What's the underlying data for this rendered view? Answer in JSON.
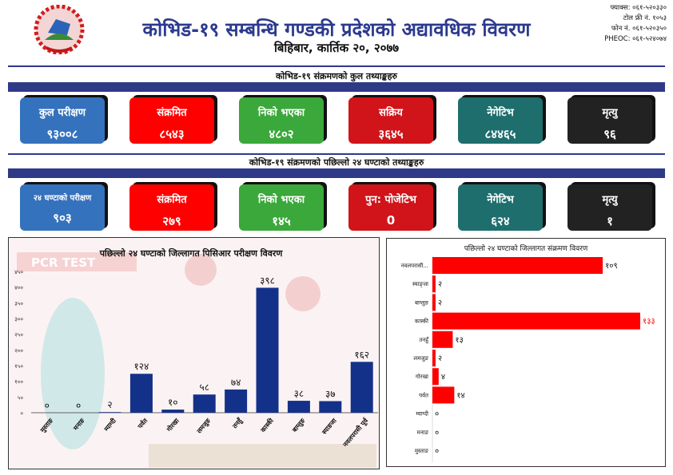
{
  "header": {
    "title": "कोभिड-१९ सम्बन्धि गण्डकी प्रदेशको अद्यावधिक विवरण",
    "date": "बिहिबार, कार्तिक २०, २०७७",
    "contact": [
      "फ्याक्स: ०६१-५२०३३०",
      "टोल फ्री नं. १०५३",
      "फोन नं. ०६१-५२०३५०",
      "PHEOC: ०६१-५२४०७४"
    ]
  },
  "total": {
    "title": "कोभिड-१९ संक्रमणको कुल तथ्याङ्कहरु",
    "cards": [
      {
        "label": "कुल परीक्षण",
        "value": "९३००८",
        "color": "#3572bd"
      },
      {
        "label": "संक्रमित",
        "value": "८५४३",
        "color": "#ff0000"
      },
      {
        "label": "निको भएका",
        "value": "४८०२",
        "color": "#3aa83a"
      },
      {
        "label": "सक्रिय",
        "value": "३६४५",
        "color": "#d0141a"
      },
      {
        "label": "नेगेटिभ",
        "value": "८४४६५",
        "color": "#1e6e6e"
      },
      {
        "label": "मृत्यु",
        "value": "९६",
        "color": "#222222"
      }
    ]
  },
  "last24": {
    "title": "कोभिड-१९ संक्रमणको पछिल्लो २४ घण्टाको तथ्याङ्कहरु",
    "cards": [
      {
        "label": "२४ घण्टाको परीक्षण",
        "value": "९०३",
        "color": "#3572bd"
      },
      {
        "label": "संक्रमित",
        "value": "२७९",
        "color": "#ff0000"
      },
      {
        "label": "निको भएका",
        "value": "१४५",
        "color": "#3aa83a"
      },
      {
        "label": "पुन: पोजेटिभ",
        "value": "0",
        "color": "#d0141a"
      },
      {
        "label": "नेगेटिभ",
        "value": "६२४",
        "color": "#1e6e6e"
      },
      {
        "label": "मृत्यु",
        "value": "१",
        "color": "#222222"
      }
    ]
  },
  "chart_data": [
    {
      "type": "bar",
      "title": "पछिल्लो २४ घण्टाको जिल्लागत पिसिआर परीक्षण विवरण",
      "watermark": "PCR TEST",
      "categories": [
        "मुस्ताङ",
        "मनाङ",
        "म्याग्दी",
        "पर्वत",
        "गोरखा",
        "लमजुङ",
        "तनहुँ",
        "कास्की",
        "बाग्लुङ",
        "स्याङजा",
        "नवलपरासी पूर्व"
      ],
      "values": [
        0,
        0,
        2,
        124,
        10,
        58,
        74,
        398,
        38,
        37,
        162
      ],
      "value_labels": [
        "०",
        "०",
        "२",
        "१२४",
        "१०",
        "५८",
        "७४",
        "३९८",
        "३८",
        "३७",
        "१६२"
      ],
      "yticks": [
        "०",
        "५०",
        "१००",
        "१५०",
        "२००",
        "२५०",
        "३००",
        "३५०",
        "४००",
        "४५०"
      ],
      "ylim": [
        0,
        450
      ],
      "color": "#14318a"
    },
    {
      "type": "bar",
      "orientation": "horizontal",
      "title": "पछिल्लो २४ घण्टाको जिल्लागत संक्रमण विवरण",
      "categories": [
        "नवलपरासी...",
        "स्याङ्जा",
        "बाग्लुङ",
        "कास्की",
        "तनहुँ",
        "लमजुङ",
        "गोरखा",
        "पर्वत",
        "म्याग्दी",
        "मनाङ",
        "मुस्ताङ"
      ],
      "values": [
        109,
        2,
        2,
        133,
        13,
        2,
        4,
        14,
        0,
        0,
        0
      ],
      "value_labels": [
        "१०९",
        "२",
        "२",
        "१३३",
        "१३",
        "२",
        "४",
        "१४",
        "०",
        "०",
        "०"
      ],
      "color": "#ff0000"
    }
  ]
}
